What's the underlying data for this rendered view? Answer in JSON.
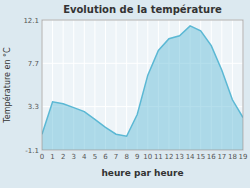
{
  "chart_data": {
    "type": "area",
    "title": "Evolution de la température",
    "x_label": "heure par heure",
    "y_label": "Température en °C",
    "x": [
      0,
      1,
      2,
      3,
      4,
      5,
      6,
      7,
      8,
      9,
      10,
      11,
      12,
      13,
      14,
      15,
      16,
      17,
      18,
      19
    ],
    "values": [
      0.5,
      3.8,
      3.6,
      3.2,
      2.8,
      2.0,
      1.2,
      0.5,
      0.3,
      2.5,
      6.5,
      9.0,
      10.2,
      10.5,
      11.5,
      11.0,
      9.5,
      7.0,
      4.0,
      2.2
    ],
    "color": "#5bb8d4",
    "xlim": [
      0,
      19
    ],
    "xticks": [
      0,
      1,
      2,
      3,
      4,
      5,
      6,
      7,
      8,
      9,
      10,
      11,
      12,
      13,
      14,
      15,
      16,
      17,
      18,
      19
    ],
    "ylim": [
      -1.1,
      12.1
    ],
    "yticks": [
      -1.1,
      3.3,
      7.7,
      12.1
    ],
    "grid": true
  }
}
